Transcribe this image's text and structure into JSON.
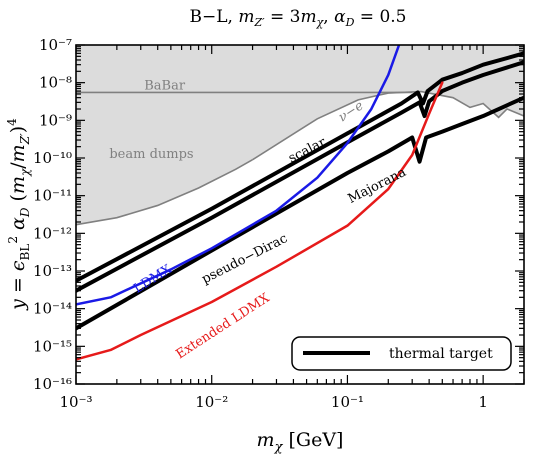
{
  "chart_data": {
    "type": "line",
    "title": "B−L, m_Z′ = 3m_χ, α_D = 0.5",
    "xlabel": "m_χ [GeV]",
    "ylabel": "y = ε_BL² α_D (m_χ/m_Z′)⁴",
    "xscale": "log",
    "yscale": "log",
    "xlim": [
      0.001,
      2
    ],
    "ylim": [
      1e-16,
      1e-07
    ],
    "x_ticks": [
      {
        "value": 0.001,
        "label": "10⁻³"
      },
      {
        "value": 0.01,
        "label": "10⁻²"
      },
      {
        "value": 0.1,
        "label": "10⁻¹"
      },
      {
        "value": 1,
        "label": "1"
      }
    ],
    "y_ticks": [
      {
        "value": 1e-16,
        "label": "10⁻¹⁶"
      },
      {
        "value": 1e-15,
        "label": "10⁻¹⁵"
      },
      {
        "value": 1e-14,
        "label": "10⁻¹⁴"
      },
      {
        "value": 1e-13,
        "label": "10⁻¹³"
      },
      {
        "value": 1e-12,
        "label": "10⁻¹²"
      },
      {
        "value": 1e-11,
        "label": "10⁻¹¹"
      },
      {
        "value": 1e-10,
        "label": "10⁻¹⁰"
      },
      {
        "value": 1e-09,
        "label": "10⁻⁹"
      },
      {
        "value": 1e-08,
        "label": "10⁻⁸"
      },
      {
        "value": 1e-07,
        "label": "10⁻⁷"
      }
    ],
    "excluded_regions": [
      {
        "name": "BaBar",
        "label_pos": [
          0.0045,
          6.5e-09
        ],
        "boundary": [
          [
            0.001,
            5.5e-09
          ],
          [
            0.01,
            5.5e-09
          ],
          [
            0.1,
            5.5e-09
          ],
          [
            0.3,
            5.5e-09
          ]
        ]
      },
      {
        "name": "ν−e",
        "label_pos": [
          0.11,
          1.4e-09
        ],
        "boundary": [
          [
            0.02,
            9e-11
          ],
          [
            0.06,
            1.1e-09
          ],
          [
            0.12,
            3.5e-09
          ],
          [
            0.2,
            5.3e-09
          ],
          [
            0.35,
            5.8e-09
          ],
          [
            0.6,
            4e-09
          ],
          [
            0.8,
            2.2e-09
          ],
          [
            1.0,
            2.8e-09
          ],
          [
            1.3,
            1.2e-09
          ],
          [
            1.5,
            2e-09
          ],
          [
            2.0,
            1.3e-09
          ]
        ]
      },
      {
        "name": "beam dumps",
        "label_pos": [
          0.0036,
          1e-10
        ],
        "boundary": [
          [
            0.001,
            1.7e-12
          ],
          [
            0.002,
            2.6e-12
          ],
          [
            0.004,
            5.5e-12
          ],
          [
            0.008,
            1.6e-11
          ],
          [
            0.015,
            5e-11
          ],
          [
            0.02,
            9e-11
          ]
        ]
      }
    ],
    "series": [
      {
        "name": "scalar",
        "color": "#000000",
        "points": [
          [
            0.001,
            5.5e-14
          ],
          [
            0.01,
            4.5e-12
          ],
          [
            0.1,
            4.5e-10
          ],
          [
            0.25,
            2.8e-09
          ],
          [
            0.33,
            5.5e-09
          ],
          [
            0.36,
            2.8e-09
          ],
          [
            0.39,
            6e-09
          ],
          [
            0.5,
            1.2e-08
          ],
          [
            0.7,
            1.8e-08
          ],
          [
            1.0,
            3e-08
          ],
          [
            2.0,
            6e-08
          ]
        ]
      },
      {
        "name": "Majorana",
        "color": "#000000",
        "points": [
          [
            0.001,
            3e-14
          ],
          [
            0.01,
            2.6e-12
          ],
          [
            0.1,
            2.6e-10
          ],
          [
            0.25,
            1.6e-09
          ],
          [
            0.34,
            3e-09
          ],
          [
            0.37,
            1.3e-09
          ],
          [
            0.4,
            3.2e-09
          ],
          [
            0.5,
            6e-09
          ],
          [
            0.7,
            1e-08
          ],
          [
            1.0,
            1.6e-08
          ],
          [
            2.0,
            3.5e-08
          ]
        ]
      },
      {
        "name": "pseudo−Dirac",
        "color": "#000000",
        "points": [
          [
            0.001,
            3e-15
          ],
          [
            0.01,
            3.5e-13
          ],
          [
            0.1,
            4e-11
          ],
          [
            0.2,
            1.5e-10
          ],
          [
            0.3,
            3.5e-10
          ],
          [
            0.34,
            8e-11
          ],
          [
            0.38,
            3.5e-10
          ],
          [
            0.5,
            5e-10
          ],
          [
            0.7,
            8e-10
          ],
          [
            1.0,
            1.3e-09
          ],
          [
            2.0,
            4e-09
          ]
        ]
      },
      {
        "name": "LDMX",
        "color": "#1a1ae6",
        "points": [
          [
            0.001,
            1.3e-14
          ],
          [
            0.0018,
            2e-14
          ],
          [
            0.005,
            1.1e-13
          ],
          [
            0.01,
            4e-13
          ],
          [
            0.03,
            4e-12
          ],
          [
            0.06,
            3e-11
          ],
          [
            0.1,
            2.5e-10
          ],
          [
            0.15,
            2e-09
          ],
          [
            0.2,
            1.6e-08
          ],
          [
            0.24,
            1e-07
          ]
        ]
      },
      {
        "name": "Extended LDMX",
        "color": "#e61a1a",
        "points": [
          [
            0.001,
            4.5e-16
          ],
          [
            0.0018,
            8e-16
          ],
          [
            0.003,
            2e-15
          ],
          [
            0.01,
            1.5e-14
          ],
          [
            0.03,
            1.3e-13
          ],
          [
            0.1,
            1.6e-12
          ],
          [
            0.2,
            1.5e-11
          ],
          [
            0.3,
            1.2e-10
          ],
          [
            0.4,
            1.5e-09
          ],
          [
            0.5,
            1e-08
          ]
        ]
      }
    ],
    "legend": {
      "position": "lower-right",
      "entries": [
        "thermal target"
      ]
    }
  }
}
